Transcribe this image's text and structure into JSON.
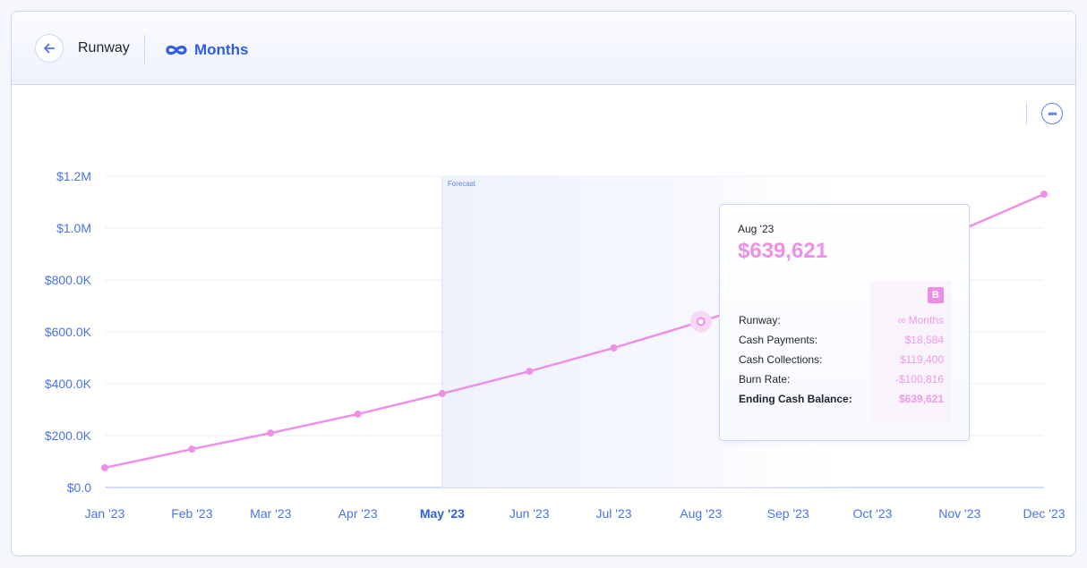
{
  "header": {
    "title": "Runway",
    "metric_value": "Months",
    "metric_icon": "infinity-icon",
    "back_icon": "arrow-left-icon"
  },
  "toolbar": {
    "more_icon": "ellipsis-icon"
  },
  "colors": {
    "line": "#ee8fe8",
    "accent": "#2f5fe0",
    "axis_text": "#4a74e8",
    "forecast_band": "#eef2fd"
  },
  "chart_data": {
    "type": "line",
    "categories": [
      "Jan '23",
      "Feb '23",
      "Mar '23",
      "Apr '23",
      "May '23",
      "Jun '23",
      "Jul '23",
      "Aug '23",
      "Sep '23",
      "Oct '23",
      "Nov '23",
      "Dec '23"
    ],
    "values": [
      76000,
      148000,
      210000,
      283000,
      362000,
      448000,
      538000,
      639621,
      750000,
      870000,
      990000,
      1131000
    ],
    "y_ticks": [
      "$0.0",
      "$200.0K",
      "$400.0K",
      "$600.0K",
      "$800.0K",
      "$1.0M",
      "$1.2M"
    ],
    "ylim": [
      0,
      1200000
    ],
    "grid": true,
    "forecast_label": "Forecast",
    "forecast_start": "May '23",
    "highlighted": "Aug '23"
  },
  "tooltip": {
    "date": "Aug '23",
    "value": "$639,621",
    "badge": "B",
    "rows": [
      {
        "label": "Runway:",
        "value": "∞ Months"
      },
      {
        "label": "Cash Payments:",
        "value": "$18,584"
      },
      {
        "label": "Cash Collections:",
        "value": "$119,400"
      },
      {
        "label": "Burn Rate:",
        "value": "-$100,816"
      },
      {
        "label": "Ending Cash Balance:",
        "value": "$639,621"
      }
    ]
  }
}
